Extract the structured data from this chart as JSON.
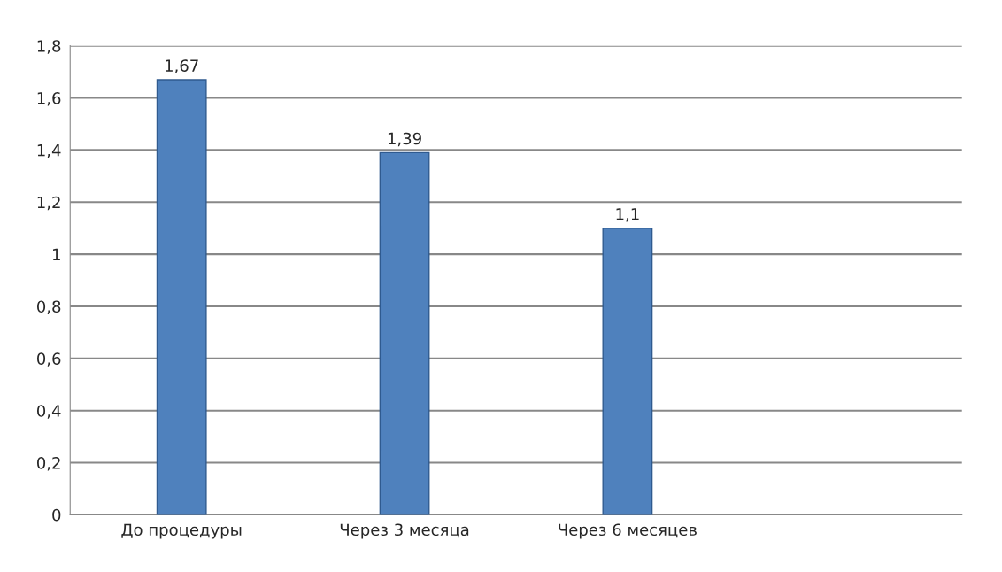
{
  "chart_data": {
    "type": "bar",
    "categories": [
      "До процедуры",
      "Через 3 месяца",
      "Через 6 месяцев",
      null
    ],
    "values": [
      1.67,
      1.39,
      1.1,
      null
    ],
    "value_labels": [
      "1,67",
      "1,39",
      "1,1",
      null
    ],
    "color": "#4f81bd",
    "ylim": [
      0,
      1.8
    ],
    "yticks": [
      0,
      {
        "value": 0.2,
        "label": "0,2"
      },
      {
        "value": 0.4,
        "label": "0,4"
      },
      {
        "value": 0.6,
        "label": "0,6"
      },
      {
        "value": 0.8,
        "label": "0,8"
      },
      1,
      {
        "value": 1.2,
        "label": "1,2"
      },
      {
        "value": 1.4,
        "label": "1,4"
      },
      {
        "value": 1.6,
        "label": "1,6"
      },
      {
        "value": 1.8,
        "label": "1,8"
      }
    ],
    "grid": "y",
    "legend": false
  }
}
